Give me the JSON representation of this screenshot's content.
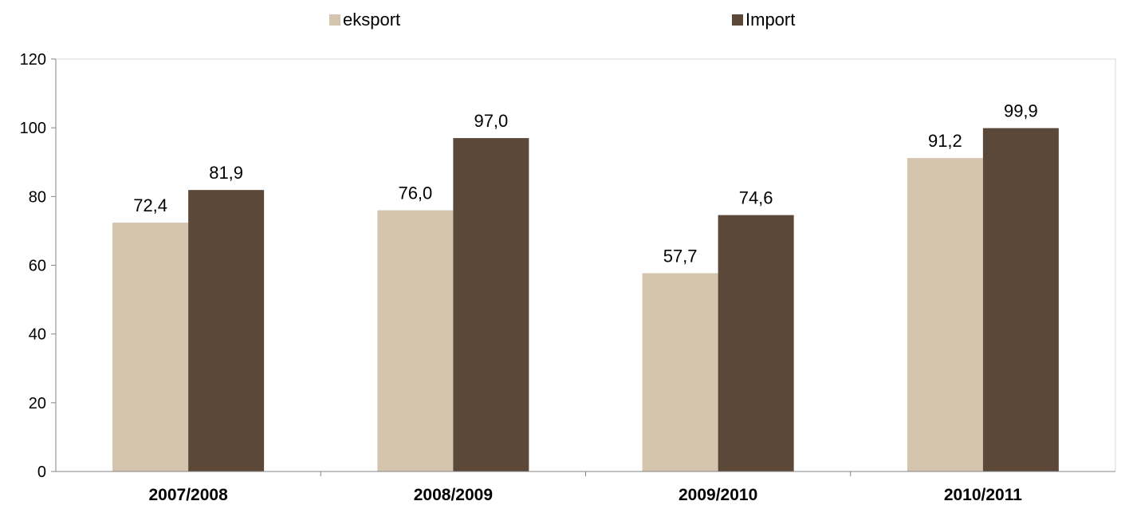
{
  "chart_data": {
    "type": "bar",
    "categories": [
      "2007/2008",
      "2008/2009",
      "2009/2010",
      "2010/2011"
    ],
    "series": [
      {
        "name": "eksport",
        "color": "#d5c4ae",
        "values": [
          72.4,
          76.0,
          57.7,
          91.2
        ],
        "labels": [
          "72,4",
          "76,0",
          "57,7",
          "91,2"
        ]
      },
      {
        "name": "Import",
        "color": "#5c4838",
        "values": [
          81.9,
          97.0,
          74.6,
          99.9
        ],
        "labels": [
          "81,9",
          "97,0",
          "74,6",
          "99,9"
        ]
      }
    ],
    "yticks": [
      "0",
      "20",
      "40",
      "60",
      "80",
      "100",
      "120"
    ],
    "ylim": [
      0,
      120
    ],
    "grid": false,
    "legend": "top-center",
    "title": "",
    "xlabel": "",
    "ylabel": ""
  }
}
